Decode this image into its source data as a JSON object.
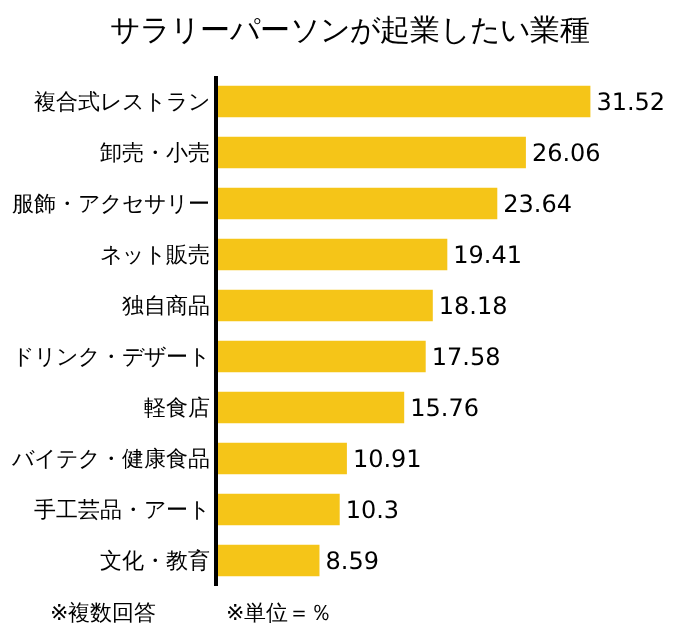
{
  "chart_data": {
    "type": "bar",
    "orientation": "horizontal",
    "title": "サラリーパーソンが起業したい業種",
    "categories": [
      "複合式レストラン",
      "卸売・小売",
      "服飾・アクセサリー",
      "ネット販売",
      "独自商品",
      "ドリンク・デザート",
      "軽食店",
      "バイテク・健康食品",
      "手工芸品・アート",
      "文化・教育"
    ],
    "values": [
      31.52,
      26.06,
      23.64,
      19.41,
      18.18,
      17.58,
      15.76,
      10.91,
      10.3,
      8.59
    ],
    "color": "#f5c518",
    "data_labels": true,
    "tick_labels": "y",
    "annotations": [
      "※複数回答",
      "※単位＝％"
    ]
  }
}
